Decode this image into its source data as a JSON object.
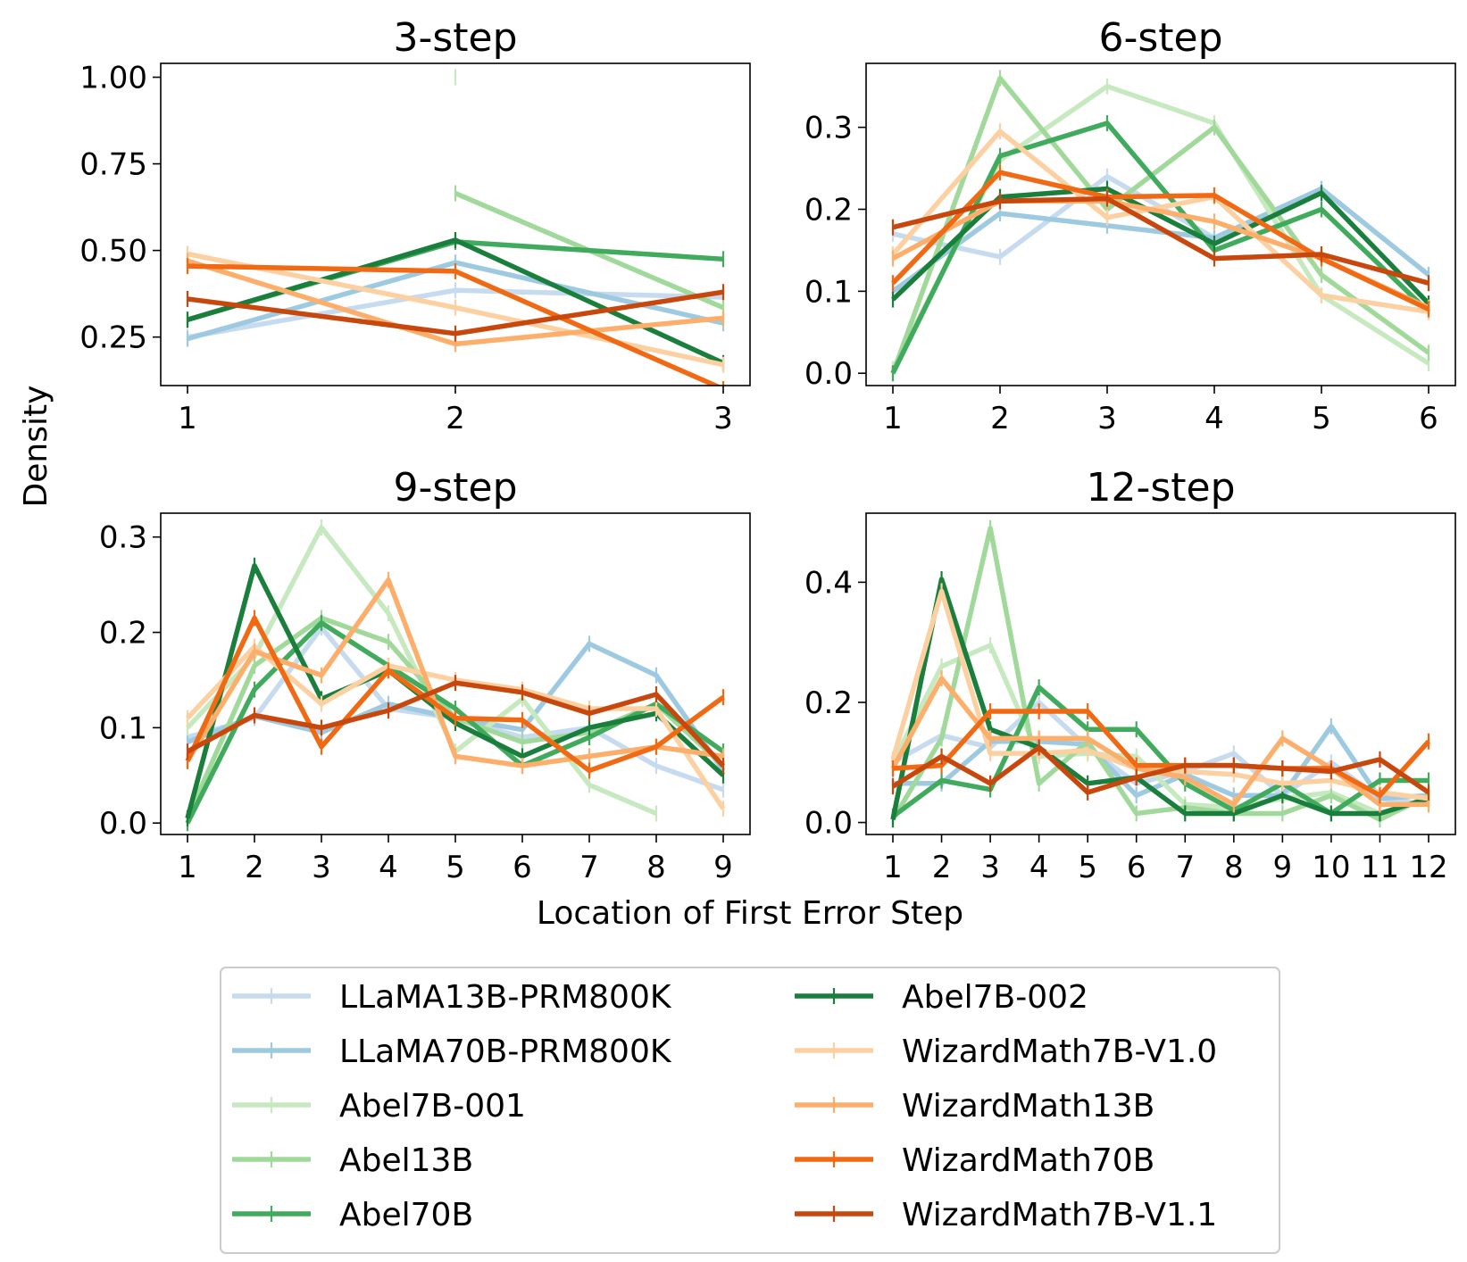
{
  "figure": {
    "xlabel": "Location of First Error Step",
    "ylabel": "Density"
  },
  "legend": {
    "entries": [
      {
        "name": "LLaMA13B-PRM800K",
        "color": "#c6dbef"
      },
      {
        "name": "LLaMA70B-PRM800K",
        "color": "#9ecae1"
      },
      {
        "name": "Abel7B-001",
        "color": "#c7e9c0"
      },
      {
        "name": "Abel13B",
        "color": "#a1d99b"
      },
      {
        "name": "Abel70B",
        "color": "#41ab5d"
      },
      {
        "name": "Abel7B-002",
        "color": "#1a7f3c"
      },
      {
        "name": "WizardMath7B-V1.0",
        "color": "#fdd0a2"
      },
      {
        "name": "WizardMath13B",
        "color": "#fdae6b"
      },
      {
        "name": "WizardMath70B",
        "color": "#f16913"
      },
      {
        "name": "WizardMath7B-V1.1",
        "color": "#c8470d"
      }
    ]
  },
  "chart_data": [
    {
      "type": "line",
      "title": "3-step",
      "x": [
        1,
        2,
        3
      ],
      "xticks": [
        "1",
        "2",
        "3"
      ],
      "ylim": [
        0.11,
        1.04
      ],
      "yticks": [
        0.25,
        0.5,
        0.75,
        1.0
      ],
      "ytick_labels": [
        "0.25",
        "0.50",
        "0.75",
        "1.00"
      ],
      "series": [
        {
          "name": "LLaMA13B-PRM800K",
          "values": [
            0.25,
            0.385,
            0.365
          ]
        },
        {
          "name": "LLaMA70B-PRM800K",
          "values": [
            0.245,
            0.465,
            0.29
          ]
        },
        {
          "name": "Abel7B-001",
          "values": [
            null,
            1.0,
            null
          ]
        },
        {
          "name": "Abel13B",
          "values": [
            null,
            0.665,
            0.335
          ]
        },
        {
          "name": "Abel70B",
          "values": [
            0.3,
            0.525,
            0.475
          ]
        },
        {
          "name": "Abel7B-002",
          "values": [
            0.3,
            0.53,
            0.175
          ]
        },
        {
          "name": "WizardMath7B-V1.0",
          "values": [
            0.49,
            0.335,
            0.17
          ]
        },
        {
          "name": "WizardMath13B",
          "values": [
            0.47,
            0.23,
            0.305
          ]
        },
        {
          "name": "WizardMath70B",
          "values": [
            0.455,
            0.44,
            0.1
          ]
        },
        {
          "name": "WizardMath7B-V1.1",
          "values": [
            0.36,
            0.26,
            0.38
          ]
        }
      ]
    },
    {
      "type": "line",
      "title": "6-step",
      "x": [
        1,
        2,
        3,
        4,
        5,
        6
      ],
      "xticks": [
        "1",
        "2",
        "3",
        "4",
        "5",
        "6"
      ],
      "ylim": [
        -0.015,
        0.378
      ],
      "yticks": [
        0.0,
        0.1,
        0.2,
        0.3
      ],
      "ytick_labels": [
        "0.0",
        "0.1",
        "0.2",
        "0.3"
      ],
      "series": [
        {
          "name": "LLaMA13B-PRM800K",
          "values": [
            0.17,
            0.142,
            0.24,
            0.165,
            0.225,
            0.12
          ]
        },
        {
          "name": "LLaMA70B-PRM800K",
          "values": [
            0.1,
            0.195,
            0.18,
            0.165,
            0.225,
            0.12
          ]
        },
        {
          "name": "Abel7B-001",
          "values": [
            0.005,
            0.26,
            0.35,
            0.305,
            0.095,
            0.012
          ]
        },
        {
          "name": "Abel13B",
          "values": [
            0.0,
            0.36,
            0.2,
            0.3,
            0.12,
            0.025
          ]
        },
        {
          "name": "Abel70B",
          "values": [
            0.0,
            0.265,
            0.305,
            0.15,
            0.2,
            0.075
          ]
        },
        {
          "name": "Abel7B-002",
          "values": [
            0.09,
            0.215,
            0.225,
            0.158,
            0.22,
            0.085
          ]
        },
        {
          "name": "WizardMath7B-V1.0",
          "values": [
            0.145,
            0.295,
            0.19,
            0.215,
            0.095,
            0.075
          ]
        },
        {
          "name": "WizardMath13B",
          "values": [
            0.14,
            0.21,
            0.21,
            0.185,
            0.14,
            0.08
          ]
        },
        {
          "name": "WizardMath70B",
          "values": [
            0.11,
            0.245,
            0.215,
            0.217,
            0.14,
            0.078
          ]
        },
        {
          "name": "WizardMath7B-V1.1",
          "values": [
            0.178,
            0.21,
            0.213,
            0.14,
            0.145,
            0.11
          ]
        }
      ]
    },
    {
      "type": "line",
      "title": "9-step",
      "x": [
        1,
        2,
        3,
        4,
        5,
        6,
        7,
        8,
        9
      ],
      "xticks": [
        "1",
        "2",
        "3",
        "4",
        "5",
        "6",
        "7",
        "8",
        "9"
      ],
      "ylim": [
        -0.012,
        0.325
      ],
      "yticks": [
        0.0,
        0.1,
        0.2,
        0.3
      ],
      "ytick_labels": [
        "0.0",
        "0.1",
        "0.2",
        "0.3"
      ],
      "series": [
        {
          "name": "LLaMA13B-PRM800K",
          "values": [
            0.09,
            0.11,
            0.205,
            0.12,
            0.11,
            0.09,
            0.1,
            0.06,
            0.035
          ]
        },
        {
          "name": "LLaMA70B-PRM800K",
          "values": [
            0.085,
            0.112,
            0.095,
            0.125,
            0.11,
            0.098,
            0.188,
            0.155,
            0.055
          ]
        },
        {
          "name": "Abel7B-001",
          "values": [
            0.1,
            0.175,
            0.31,
            0.22,
            0.075,
            0.13,
            0.04,
            0.01,
            null
          ]
        },
        {
          "name": "Abel13B",
          "values": [
            0.005,
            0.165,
            0.215,
            0.19,
            0.11,
            0.085,
            0.095,
            0.125,
            0.06
          ]
        },
        {
          "name": "Abel70B",
          "values": [
            0.0,
            0.14,
            0.21,
            0.165,
            0.12,
            0.06,
            0.09,
            0.125,
            0.075
          ]
        },
        {
          "name": "Abel7B-002",
          "values": [
            0.005,
            0.27,
            0.13,
            0.16,
            0.105,
            0.07,
            0.1,
            0.115,
            0.05
          ]
        },
        {
          "name": "WizardMath7B-V1.0",
          "values": [
            0.11,
            0.185,
            0.125,
            0.165,
            0.15,
            0.14,
            0.12,
            0.12,
            0.015
          ]
        },
        {
          "name": "WizardMath13B",
          "values": [
            0.065,
            0.18,
            0.155,
            0.255,
            0.07,
            0.06,
            0.07,
            0.08,
            0.07
          ]
        },
        {
          "name": "WizardMath70B",
          "values": [
            0.065,
            0.215,
            0.08,
            0.16,
            0.11,
            0.108,
            0.055,
            0.08,
            0.132
          ]
        },
        {
          "name": "WizardMath7B-V1.1",
          "values": [
            0.075,
            0.113,
            0.1,
            0.118,
            0.147,
            0.137,
            0.115,
            0.135,
            0.06
          ]
        }
      ]
    },
    {
      "type": "line",
      "title": "12-step",
      "x": [
        1,
        2,
        3,
        4,
        5,
        6,
        7,
        8,
        9,
        10,
        11,
        12
      ],
      "xticks": [
        "1",
        "2",
        "3",
        "4",
        "5",
        "6",
        "7",
        "8",
        "9",
        "10",
        "11",
        "12"
      ],
      "ylim": [
        -0.02,
        0.515
      ],
      "yticks": [
        0.0,
        0.2,
        0.4
      ],
      "ytick_labels": [
        "0.0",
        "0.2",
        "0.4"
      ],
      "series": [
        {
          "name": "LLaMA13B-PRM800K",
          "values": [
            0.1,
            0.145,
            0.125,
            0.2,
            0.125,
            0.065,
            0.085,
            0.115,
            0.045,
            0.1,
            0.04,
            0.03
          ]
        },
        {
          "name": "LLaMA70B-PRM800K",
          "values": [
            0.065,
            0.065,
            0.135,
            0.135,
            0.13,
            0.045,
            0.08,
            0.045,
            0.045,
            0.16,
            0.04,
            0.045
          ]
        },
        {
          "name": "Abel7B-001",
          "values": [
            0.1,
            0.26,
            0.295,
            0.11,
            0.115,
            0.11,
            0.03,
            0.025,
            0.04,
            0.05,
            0.015,
            0.04
          ]
        },
        {
          "name": "Abel13B",
          "values": [
            0.005,
            0.14,
            0.49,
            0.065,
            0.135,
            0.015,
            0.025,
            0.015,
            0.015,
            0.045,
            0.005,
            0.045
          ]
        },
        {
          "name": "Abel70B",
          "values": [
            0.01,
            0.07,
            0.055,
            0.225,
            0.155,
            0.155,
            0.065,
            0.02,
            0.065,
            0.015,
            0.07,
            0.07
          ]
        },
        {
          "name": "Abel7B-002",
          "values": [
            0.005,
            0.405,
            0.155,
            0.125,
            0.065,
            0.075,
            0.015,
            0.015,
            0.045,
            0.015,
            0.015,
            0.04
          ]
        },
        {
          "name": "WizardMath7B-V1.0",
          "values": [
            0.105,
            0.385,
            0.115,
            0.115,
            0.12,
            0.09,
            0.085,
            0.08,
            0.065,
            0.07,
            0.05,
            0.04
          ]
        },
        {
          "name": "WizardMath13B",
          "values": [
            0.09,
            0.24,
            0.14,
            0.14,
            0.14,
            0.09,
            0.075,
            0.03,
            0.14,
            0.09,
            0.03,
            0.03
          ]
        },
        {
          "name": "WizardMath70B",
          "values": [
            0.09,
            0.095,
            0.185,
            0.185,
            0.185,
            0.095,
            0.095,
            0.095,
            0.09,
            0.09,
            0.045,
            0.135
          ]
        },
        {
          "name": "WizardMath7B-V1.1",
          "values": [
            0.06,
            0.11,
            0.065,
            0.125,
            0.05,
            0.075,
            0.095,
            0.095,
            0.09,
            0.085,
            0.105,
            0.05
          ]
        }
      ]
    }
  ]
}
